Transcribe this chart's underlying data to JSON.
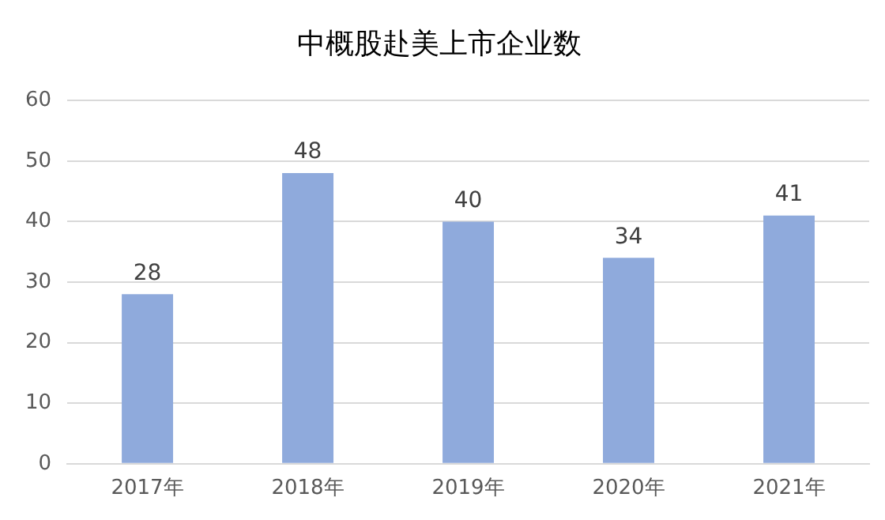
{
  "chart_data": {
    "type": "bar",
    "title": "中概股赴美上市企业数",
    "categories": [
      "2017年",
      "2018年",
      "2019年",
      "2020年",
      "2021年"
    ],
    "values": [
      28,
      48,
      40,
      34,
      41
    ],
    "color": "#8faadc",
    "ylim": [
      0,
      60
    ],
    "yticks": [
      0,
      10,
      20,
      30,
      40,
      50,
      60
    ],
    "grid": "y",
    "data_labels": true,
    "legend": false
  }
}
